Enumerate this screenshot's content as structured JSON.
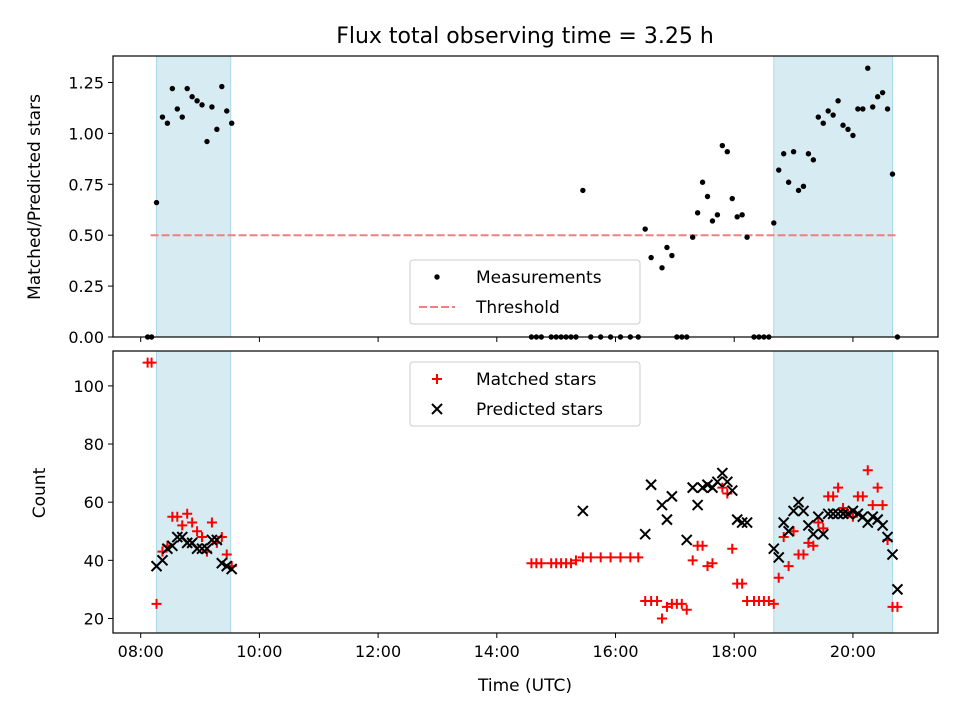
{
  "chart_data": [
    {
      "type": "scatter",
      "title": "Flux total observing time = 3.25 h",
      "xlabel": "",
      "ylabel": "Matched/Predicted stars",
      "xlim": [
        "07:32",
        "21:26"
      ],
      "ylim": [
        0,
        1.38
      ],
      "yticks": [
        "0.00",
        "0.25",
        "0.50",
        "0.75",
        "1.00",
        "1.25"
      ],
      "shaded_ranges": [
        [
          "08:16",
          "09:31"
        ],
        [
          "18:40",
          "20:40"
        ]
      ],
      "threshold": {
        "y": 0.5,
        "x_start": "08:10",
        "x_end": "20:45",
        "color": "#f08080"
      },
      "legend": {
        "position": "lower-center",
        "entries": [
          "Measurements",
          "Threshold"
        ]
      },
      "series": [
        {
          "name": "Measurements",
          "marker": "dot",
          "color": "#000000",
          "points": [
            [
              "08:07",
              0
            ],
            [
              "08:11",
              0
            ],
            [
              "08:16",
              0.66
            ],
            [
              "08:22",
              1.08
            ],
            [
              "08:27",
              1.05
            ],
            [
              "08:32",
              1.22
            ],
            [
              "08:37",
              1.12
            ],
            [
              "08:42",
              1.08
            ],
            [
              "08:47",
              1.22
            ],
            [
              "08:52",
              1.18
            ],
            [
              "08:57",
              1.16
            ],
            [
              "09:02",
              1.14
            ],
            [
              "09:07",
              0.96
            ],
            [
              "09:12",
              1.13
            ],
            [
              "09:17",
              1.02
            ],
            [
              "09:22",
              1.23
            ],
            [
              "09:27",
              1.11
            ],
            [
              "09:32",
              1.05
            ],
            [
              "14:35",
              0
            ],
            [
              "14:40",
              0
            ],
            [
              "14:45",
              0
            ],
            [
              "14:55",
              0
            ],
            [
              "15:00",
              0
            ],
            [
              "15:05",
              0
            ],
            [
              "15:10",
              0
            ],
            [
              "15:15",
              0
            ],
            [
              "15:20",
              0
            ],
            [
              "15:27",
              0.72
            ],
            [
              "15:35",
              0
            ],
            [
              "15:45",
              0
            ],
            [
              "15:55",
              0
            ],
            [
              "16:05",
              0
            ],
            [
              "16:15",
              0
            ],
            [
              "16:23",
              0
            ],
            [
              "16:30",
              0.53
            ],
            [
              "16:36",
              0.39
            ],
            [
              "16:47",
              0.34
            ],
            [
              "16:52",
              0.44
            ],
            [
              "16:57",
              0.4
            ],
            [
              "17:02",
              0
            ],
            [
              "17:07",
              0
            ],
            [
              "17:12",
              0
            ],
            [
              "17:18",
              0.49
            ],
            [
              "17:23",
              0.61
            ],
            [
              "17:28",
              0.76
            ],
            [
              "17:33",
              0.69
            ],
            [
              "17:38",
              0.57
            ],
            [
              "17:43",
              0.6
            ],
            [
              "17:48",
              0.94
            ],
            [
              "17:53",
              0.91
            ],
            [
              "17:58",
              0.68
            ],
            [
              "18:03",
              0.59
            ],
            [
              "18:08",
              0.6
            ],
            [
              "18:13",
              0.49
            ],
            [
              "18:20",
              0
            ],
            [
              "18:25",
              0
            ],
            [
              "18:30",
              0
            ],
            [
              "18:35",
              0
            ],
            [
              "18:40",
              0.56
            ],
            [
              "18:45",
              0.82
            ],
            [
              "18:50",
              0.9
            ],
            [
              "18:55",
              0.76
            ],
            [
              "19:00",
              0.91
            ],
            [
              "19:05",
              0.72
            ],
            [
              "19:10",
              0.74
            ],
            [
              "19:15",
              0.9
            ],
            [
              "19:20",
              0.87
            ],
            [
              "19:25",
              1.08
            ],
            [
              "19:30",
              1.05
            ],
            [
              "19:35",
              1.11
            ],
            [
              "19:40",
              1.09
            ],
            [
              "19:45",
              1.16
            ],
            [
              "19:50",
              1.04
            ],
            [
              "19:55",
              1.02
            ],
            [
              "20:00",
              0.99
            ],
            [
              "20:05",
              1.12
            ],
            [
              "20:10",
              1.12
            ],
            [
              "20:15",
              1.32
            ],
            [
              "20:20",
              1.13
            ],
            [
              "20:25",
              1.18
            ],
            [
              "20:30",
              1.2
            ],
            [
              "20:35",
              1.12
            ],
            [
              "20:40",
              0.8
            ],
            [
              "20:45",
              0
            ]
          ]
        }
      ]
    },
    {
      "type": "scatter",
      "title": "",
      "xlabel": "Time (UTC)",
      "ylabel": "Count",
      "xlim": [
        "07:32",
        "21:26"
      ],
      "ylim": [
        15,
        112
      ],
      "xticks": [
        "08:00",
        "10:00",
        "12:00",
        "14:00",
        "16:00",
        "18:00",
        "20:00"
      ],
      "yticks": [
        "20",
        "40",
        "60",
        "80",
        "100"
      ],
      "shaded_ranges": [
        [
          "08:16",
          "09:31"
        ],
        [
          "18:40",
          "20:40"
        ]
      ],
      "legend": {
        "position": "upper-center",
        "entries": [
          "Matched stars",
          "Predicted stars"
        ]
      },
      "series": [
        {
          "name": "Matched stars",
          "marker": "plus",
          "color": "#ff0000",
          "points": [
            [
              "08:07",
              108
            ],
            [
              "08:11",
              108
            ],
            [
              "08:16",
              25
            ],
            [
              "08:22",
              43
            ],
            [
              "08:27",
              45
            ],
            [
              "08:32",
              55
            ],
            [
              "08:37",
              55
            ],
            [
              "08:42",
              52
            ],
            [
              "08:47",
              56
            ],
            [
              "08:52",
              53
            ],
            [
              "08:57",
              50
            ],
            [
              "09:02",
              48
            ],
            [
              "09:07",
              43
            ],
            [
              "09:12",
              53
            ],
            [
              "09:17",
              46
            ],
            [
              "09:22",
              48
            ],
            [
              "09:27",
              42
            ],
            [
              "09:32",
              38
            ],
            [
              "14:35",
              39
            ],
            [
              "14:40",
              39
            ],
            [
              "14:45",
              39
            ],
            [
              "14:55",
              39
            ],
            [
              "15:00",
              39
            ],
            [
              "15:05",
              39
            ],
            [
              "15:10",
              39
            ],
            [
              "15:15",
              39
            ],
            [
              "15:20",
              40
            ],
            [
              "15:27",
              41
            ],
            [
              "15:35",
              41
            ],
            [
              "15:45",
              41
            ],
            [
              "15:55",
              41
            ],
            [
              "16:05",
              41
            ],
            [
              "16:15",
              41
            ],
            [
              "16:23",
              41
            ],
            [
              "16:30",
              26
            ],
            [
              "16:36",
              26
            ],
            [
              "16:42",
              26
            ],
            [
              "16:47",
              20
            ],
            [
              "16:52",
              24
            ],
            [
              "16:57",
              25
            ],
            [
              "17:02",
              25
            ],
            [
              "17:07",
              25
            ],
            [
              "17:12",
              23
            ],
            [
              "17:18",
              40
            ],
            [
              "17:23",
              45
            ],
            [
              "17:28",
              45
            ],
            [
              "17:33",
              38
            ],
            [
              "17:38",
              39
            ],
            [
              "17:48",
              65
            ],
            [
              "17:53",
              63
            ],
            [
              "17:58",
              44
            ],
            [
              "18:03",
              32
            ],
            [
              "18:08",
              32
            ],
            [
              "18:13",
              26
            ],
            [
              "18:20",
              26
            ],
            [
              "18:25",
              26
            ],
            [
              "18:30",
              26
            ],
            [
              "18:35",
              26
            ],
            [
              "18:40",
              25
            ],
            [
              "18:45",
              34
            ],
            [
              "18:50",
              48
            ],
            [
              "18:55",
              38
            ],
            [
              "19:00",
              50
            ],
            [
              "19:05",
              42
            ],
            [
              "19:10",
              42
            ],
            [
              "19:15",
              46
            ],
            [
              "19:20",
              45
            ],
            [
              "19:25",
              53
            ],
            [
              "19:30",
              51
            ],
            [
              "19:35",
              62
            ],
            [
              "19:40",
              62
            ],
            [
              "19:45",
              65
            ],
            [
              "19:50",
              58
            ],
            [
              "19:55",
              56
            ],
            [
              "20:00",
              55
            ],
            [
              "20:05",
              62
            ],
            [
              "20:10",
              62
            ],
            [
              "20:15",
              71
            ],
            [
              "20:20",
              59
            ],
            [
              "20:25",
              65
            ],
            [
              "20:30",
              59
            ],
            [
              "20:35",
              47
            ],
            [
              "20:40",
              24
            ],
            [
              "20:45",
              24
            ]
          ]
        },
        {
          "name": "Predicted stars",
          "marker": "x",
          "color": "#000000",
          "points": [
            [
              "08:16",
              38
            ],
            [
              "08:22",
              40
            ],
            [
              "08:27",
              44
            ],
            [
              "08:32",
              45
            ],
            [
              "08:37",
              48
            ],
            [
              "08:42",
              48
            ],
            [
              "08:47",
              46
            ],
            [
              "08:52",
              46
            ],
            [
              "08:57",
              44
            ],
            [
              "09:02",
              44
            ],
            [
              "09:07",
              44
            ],
            [
              "09:12",
              47
            ],
            [
              "09:17",
              47
            ],
            [
              "09:22",
              39
            ],
            [
              "09:27",
              38
            ],
            [
              "09:32",
              37
            ],
            [
              "15:27",
              57
            ],
            [
              "16:30",
              49
            ],
            [
              "16:36",
              66
            ],
            [
              "16:47",
              59
            ],
            [
              "16:52",
              54
            ],
            [
              "16:57",
              62
            ],
            [
              "17:12",
              47
            ],
            [
              "17:18",
              65
            ],
            [
              "17:23",
              59
            ],
            [
              "17:28",
              65
            ],
            [
              "17:33",
              66
            ],
            [
              "17:38",
              65
            ],
            [
              "17:43",
              67
            ],
            [
              "17:48",
              70
            ],
            [
              "17:53",
              67
            ],
            [
              "17:58",
              64
            ],
            [
              "18:03",
              54
            ],
            [
              "18:08",
              53
            ],
            [
              "18:13",
              53
            ],
            [
              "18:40",
              44
            ],
            [
              "18:45",
              41
            ],
            [
              "18:50",
              53
            ],
            [
              "18:55",
              50
            ],
            [
              "19:00",
              57
            ],
            [
              "19:05",
              60
            ],
            [
              "19:10",
              57
            ],
            [
              "19:15",
              52
            ],
            [
              "19:20",
              49
            ],
            [
              "19:25",
              55
            ],
            [
              "19:30",
              49
            ],
            [
              "19:35",
              56
            ],
            [
              "19:40",
              56
            ],
            [
              "19:45",
              56
            ],
            [
              "19:50",
              56
            ],
            [
              "19:55",
              56
            ],
            [
              "20:00",
              57
            ],
            [
              "20:05",
              56
            ],
            [
              "20:10",
              55
            ],
            [
              "20:15",
              53
            ],
            [
              "20:20",
              55
            ],
            [
              "20:25",
              54
            ],
            [
              "20:30",
              52
            ],
            [
              "20:35",
              48
            ],
            [
              "20:40",
              42
            ],
            [
              "20:45",
              30
            ]
          ]
        }
      ]
    }
  ]
}
